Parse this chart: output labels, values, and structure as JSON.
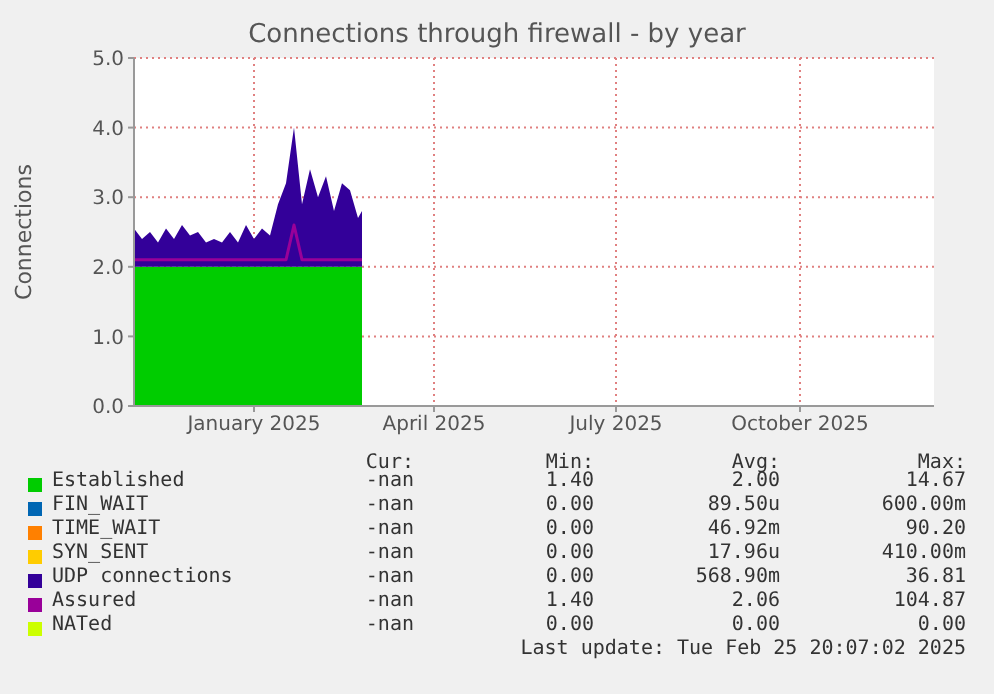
{
  "chart_data": {
    "type": "area",
    "stacked": true,
    "title": "Connections through firewall - by year",
    "ylabel": "Connections",
    "x": [
      "2024-11-02",
      "2024-11-06",
      "2024-11-10",
      "2024-11-14",
      "2024-11-18",
      "2024-11-22",
      "2024-11-26",
      "2024-11-30",
      "2024-12-04",
      "2024-12-08",
      "2024-12-12",
      "2024-12-16",
      "2024-12-20",
      "2024-12-24",
      "2024-12-28",
      "2025-01-01",
      "2025-01-05",
      "2025-01-09",
      "2025-01-13",
      "2025-01-17",
      "2025-01-21",
      "2025-01-25",
      "2025-01-29",
      "2025-02-02",
      "2025-02-06",
      "2025-02-10",
      "2025-02-14",
      "2025-02-18",
      "2025-02-22",
      "2025-02-24"
    ],
    "xlim": [
      "2024-11-02",
      "2025-12-07"
    ],
    "xticks": [
      {
        "value": "2025-01-01",
        "label": "January 2025"
      },
      {
        "value": "2025-04-01",
        "label": "April 2025"
      },
      {
        "value": "2025-07-01",
        "label": "July 2025"
      },
      {
        "value": "2025-10-01",
        "label": "October 2025"
      }
    ],
    "ylim": [
      0,
      5
    ],
    "yticks": [
      {
        "value": 0,
        "label": "0.0"
      },
      {
        "value": 1,
        "label": "1.0"
      },
      {
        "value": 2,
        "label": "2.0"
      },
      {
        "value": 3,
        "label": "3.0"
      },
      {
        "value": 4,
        "label": "4.0"
      },
      {
        "value": 5,
        "label": "5.0"
      }
    ],
    "grid": true,
    "legend": "bottom",
    "series": [
      {
        "name": "Established",
        "color": "#00cc00",
        "values": [
          2,
          2,
          2,
          2,
          2,
          2,
          2,
          2,
          2,
          2,
          2,
          2,
          2,
          2,
          2,
          2,
          2,
          2,
          2,
          2,
          2,
          2,
          2,
          2,
          2,
          2,
          2,
          2,
          2,
          2
        ]
      },
      {
        "name": "FIN_WAIT",
        "color": "#0066b3",
        "values": [
          null,
          null,
          null,
          null,
          null,
          null,
          null,
          null,
          null,
          null,
          null,
          null,
          null,
          null,
          null,
          null,
          null,
          null,
          null,
          null,
          null,
          null,
          null,
          null,
          null,
          null,
          null,
          null,
          null,
          null
        ]
      },
      {
        "name": "TIME_WAIT",
        "color": "#ff8000",
        "values": [
          null,
          null,
          null,
          null,
          null,
          null,
          null,
          null,
          null,
          null,
          null,
          null,
          null,
          null,
          null,
          null,
          null,
          null,
          null,
          null,
          null,
          null,
          null,
          null,
          null,
          null,
          null,
          null,
          null,
          null
        ]
      },
      {
        "name": "SYN_SENT",
        "color": "#ffcc00",
        "values": [
          null,
          null,
          null,
          null,
          null,
          null,
          null,
          null,
          null,
          null,
          null,
          null,
          null,
          null,
          null,
          null,
          null,
          null,
          null,
          null,
          null,
          null,
          null,
          null,
          null,
          null,
          null,
          null,
          null,
          null
        ]
      },
      {
        "name": "UDP connections",
        "color": "#330099",
        "values": [
          0.55,
          0.4,
          0.5,
          0.35,
          0.55,
          0.4,
          0.6,
          0.45,
          0.5,
          0.35,
          0.4,
          0.35,
          0.5,
          0.35,
          0.6,
          0.4,
          0.55,
          0.45,
          0.9,
          1.2,
          2.0,
          0.9,
          1.4,
          1.0,
          1.3,
          0.8,
          1.2,
          1.1,
          0.7,
          0.8
        ]
      },
      {
        "name": "Assured",
        "color": "#990099",
        "type": "line",
        "values": [
          2.1,
          2.1,
          2.1,
          2.1,
          2.1,
          2.1,
          2.1,
          2.1,
          2.1,
          2.1,
          2.1,
          2.1,
          2.1,
          2.1,
          2.1,
          2.1,
          2.1,
          2.1,
          2.1,
          2.1,
          2.6,
          2.1,
          2.1,
          2.1,
          2.1,
          2.1,
          2.1,
          2.1,
          2.1,
          2.1
        ]
      },
      {
        "name": "NATed",
        "color": "#ccff00",
        "values": [
          null,
          null,
          null,
          null,
          null,
          null,
          null,
          null,
          null,
          null,
          null,
          null,
          null,
          null,
          null,
          null,
          null,
          null,
          null,
          null,
          null,
          null,
          null,
          null,
          null,
          null,
          null,
          null,
          null,
          null
        ]
      }
    ],
    "annotations": [
      "Cur:",
      "Min:",
      "Avg:",
      "Max:",
      "-nan",
      "1.40",
      "2.00",
      "14.67",
      "-nan",
      "0.00",
      "89.50u",
      "600.00m",
      "-nan",
      "0.00",
      "46.92m",
      "90.20",
      "-nan",
      "0.00",
      "17.96u",
      "410.00m",
      "-nan",
      "0.00",
      "568.90m",
      "36.81",
      "-nan",
      "1.40",
      "2.06",
      "104.87",
      "-nan",
      "0.00",
      "0.00",
      "0.00",
      "Last update: Tue Feb 25 20:07:02 2025"
    ]
  }
}
